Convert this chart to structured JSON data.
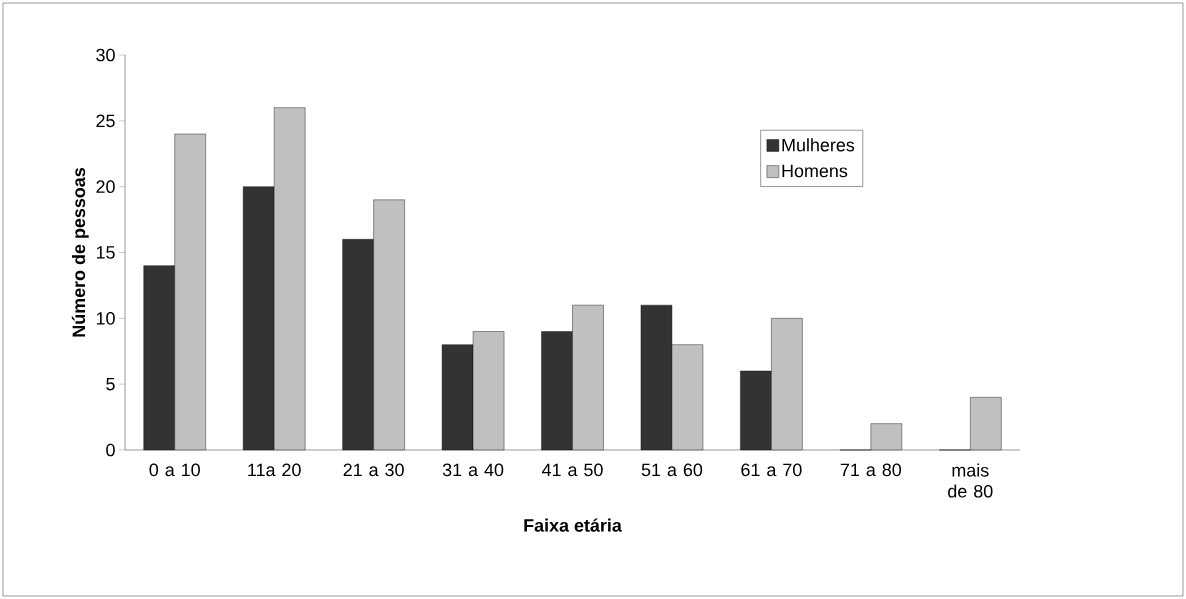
{
  "chart_data": {
    "type": "bar",
    "xlabel": "Faixa etária",
    "ylabel": "Número de pessoas",
    "categories": [
      "0 a 10",
      "11a 20",
      "21 a 30",
      "31 a 40",
      "41 a 50",
      "51 a 60",
      "61 a 70",
      "71 a 80",
      "mais de 80"
    ],
    "series": [
      {
        "name": "Mulheres",
        "color": "#333333",
        "values": [
          14,
          20,
          16,
          8,
          9,
          11,
          6,
          0,
          0
        ]
      },
      {
        "name": "Homens",
        "color": "#c0c0c0",
        "values": [
          24,
          26,
          19,
          9,
          11,
          8,
          10,
          2,
          4
        ]
      }
    ],
    "ylim": [
      0,
      30
    ],
    "yticks": [
      0,
      5,
      10,
      15,
      20,
      25,
      30
    ],
    "legend": "top right"
  }
}
